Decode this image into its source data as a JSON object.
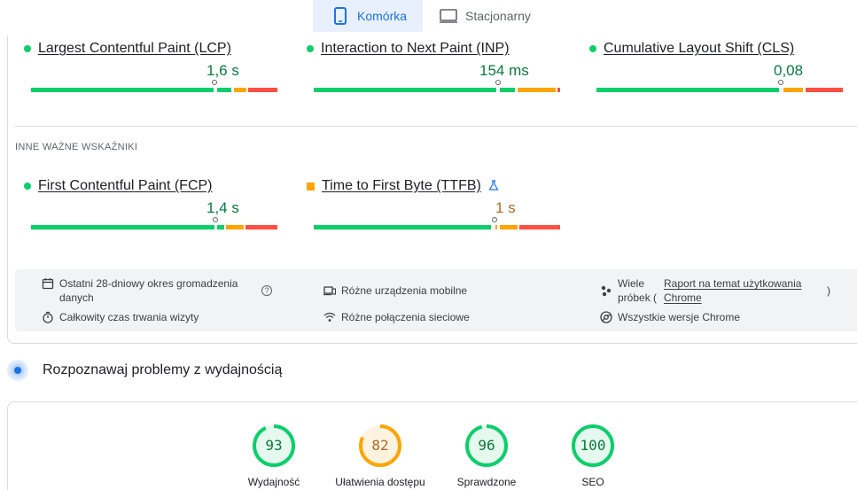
{
  "tabs": {
    "mobile": {
      "label": "Komórka",
      "icon": "smartphone-icon",
      "active": true
    },
    "desktop": {
      "label": "Stacjonarny",
      "icon": "desktop-icon",
      "active": false
    }
  },
  "core_metrics": [
    {
      "name": "Largest Contentful Paint (LCP)",
      "value": "1,6 s",
      "status": "good",
      "indicator": "green-dot",
      "marker_fraction": 0.75
    },
    {
      "name": "Interaction to Next Paint (INP)",
      "value": "154 ms",
      "status": "good",
      "indicator": "green-dot",
      "marker_fraction": 0.75
    },
    {
      "name": "Cumulative Layout Shift (CLS)",
      "value": "0,08",
      "status": "good",
      "indicator": "green-dot",
      "marker_fraction": 0.75
    }
  ],
  "other_section_label": "INNE WAŻNE WSKAŹNIKI",
  "other_metrics": [
    {
      "name": "First Contentful Paint (FCP)",
      "value": "1,4 s",
      "status": "good",
      "indicator": "green-dot",
      "marker_fraction": 0.75
    },
    {
      "name": "Time to First Byte (TTFB)",
      "value": "1 s",
      "status": "average",
      "indicator": "orange-square",
      "experimental_icon": "flask-icon",
      "marker_fraction": 0.73
    }
  ],
  "info": {
    "period": "Ostatni 28-dniowy okres gromadzenia danych",
    "duration": "Całkowity czas trwania wizyty",
    "devices": "Różne urządzenia mobilne",
    "network": "Różne połączenia sieciowe",
    "samples_prefix": "Wiele próbek (",
    "samples_link": "Raport na temat użytkowania Chrome",
    "samples_suffix": ")",
    "chrome_versions": "Wszystkie wersje Chrome",
    "help_glyph": "?"
  },
  "diagnose": {
    "title": "Rozpoznawaj problemy z wydajnością"
  },
  "scores": [
    {
      "label": "Wydajność",
      "score": "93",
      "color": "#0cce6b",
      "text_color": "#0a7a3f",
      "bg": "#e6f9ee",
      "fraction": 0.93
    },
    {
      "label": "Ułatwienia dostępu",
      "score": "82",
      "color": "#ffa400",
      "text_color": "#b0692a",
      "bg": "#fff3e0",
      "fraction": 0.82
    },
    {
      "label": "Sprawdzone",
      "score": "96",
      "color": "#0cce6b",
      "text_color": "#0a7a3f",
      "bg": "#e6f9ee",
      "fraction": 0.96
    },
    {
      "label": "SEO",
      "score": "100",
      "color": "#0cce6b",
      "text_color": "#0a7a3f",
      "bg": "#e6f9ee",
      "fraction": 1.0
    }
  ],
  "colors": {
    "good": "#0cce6b",
    "average": "#ffa400",
    "poor": "#ff4e42",
    "accent": "#1a73e8"
  }
}
